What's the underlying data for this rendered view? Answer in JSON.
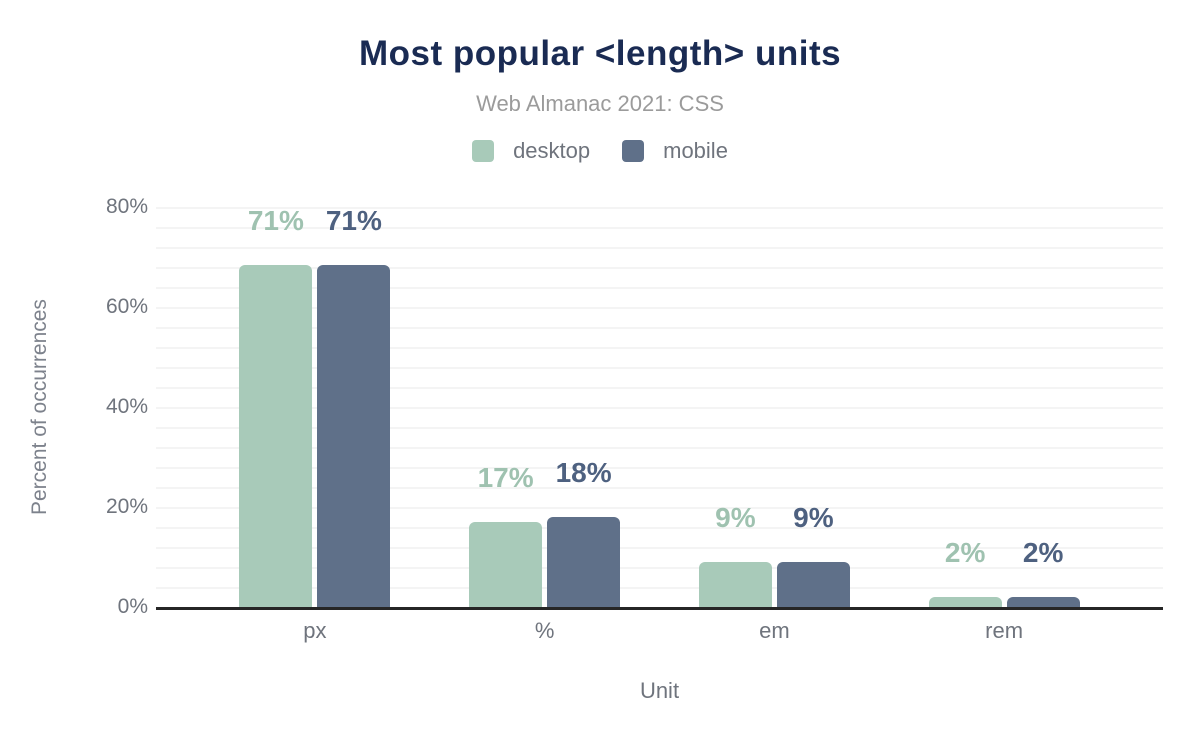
{
  "title": "Most popular <length> units",
  "subtitle": "Web Almanac 2021: CSS",
  "legend": {
    "items": [
      {
        "label": "desktop",
        "color": "#a8cab9"
      },
      {
        "label": "mobile",
        "color": "#5f7089"
      }
    ]
  },
  "colors": {
    "title": "#1a2b53",
    "subtitle": "#9b9b9b",
    "axis_text": "#6f747d",
    "gridline": "#f4f4f4",
    "axis_line": "#262626",
    "background": "#ffffff"
  },
  "chart_data": {
    "type": "bar",
    "title": "Most popular <length> units",
    "subtitle": "Web Almanac 2021: CSS",
    "categories": [
      "px",
      "%",
      "em",
      "rem"
    ],
    "series": [
      {
        "name": "desktop",
        "color": "#a8cab9",
        "label_color": "#9fc2b0",
        "values": [
          71,
          17,
          9,
          2
        ],
        "value_labels": [
          "71%",
          "17%",
          "9%",
          "2%"
        ]
      },
      {
        "name": "mobile",
        "color": "#5f7089",
        "label_color": "#4e6180",
        "values": [
          71,
          18,
          9,
          2
        ],
        "value_labels": [
          "71%",
          "18%",
          "9%",
          "2%"
        ]
      }
    ],
    "xlabel": "Unit",
    "ylabel": "Percent of occurrences",
    "ylim": [
      0,
      80
    ],
    "yticks": [
      {
        "label": "80%",
        "value": 80
      },
      {
        "label": "60%",
        "value": 60
      },
      {
        "label": "40%",
        "value": 40
      },
      {
        "label": "20%",
        "value": 20
      },
      {
        "label": "0%",
        "value": 0
      }
    ],
    "grid": "horizontal, minor lines every 4%",
    "legend_position": "top-center"
  }
}
